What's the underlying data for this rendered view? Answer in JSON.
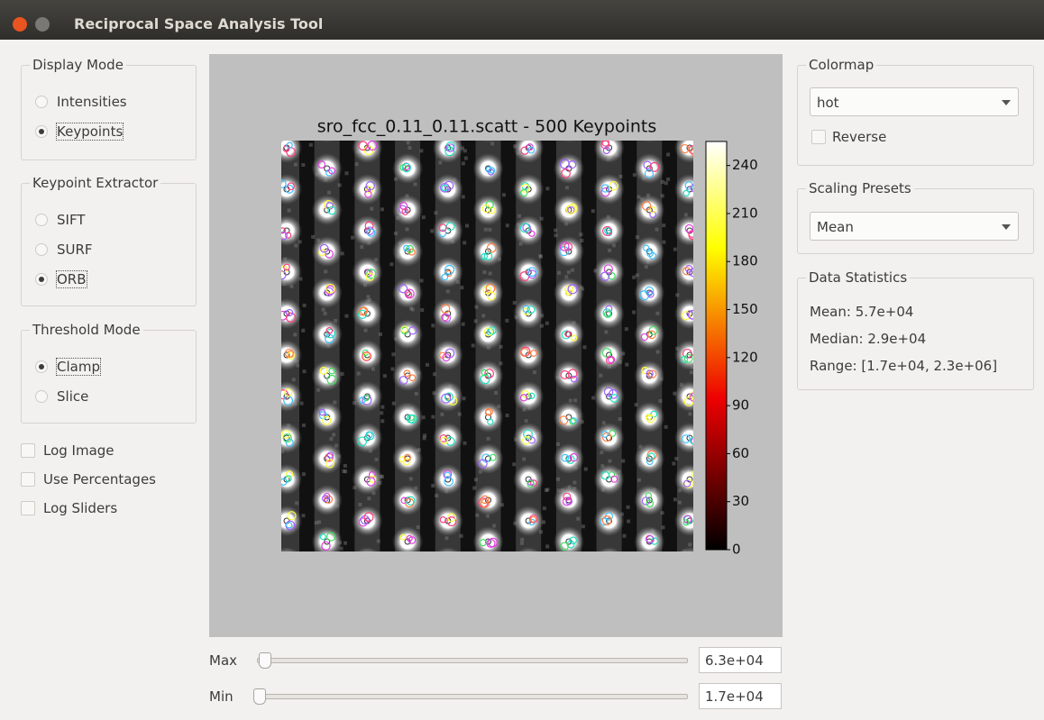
{
  "window": {
    "title": "Reciprocal Space Analysis Tool"
  },
  "left_panel": {
    "groups": [
      {
        "title": "Display Mode",
        "options": [
          "Intensities",
          "Keypoints"
        ],
        "selected": 1
      },
      {
        "title": "Keypoint Extractor",
        "options": [
          "SIFT",
          "SURF",
          "ORB"
        ],
        "selected": 2
      },
      {
        "title": "Threshold Mode",
        "options": [
          "Clamp",
          "Slice"
        ],
        "selected": 0
      }
    ],
    "checkboxes": [
      {
        "label": "Log Image",
        "checked": false
      },
      {
        "label": "Use Percentages",
        "checked": false
      },
      {
        "label": "Log Sliders",
        "checked": false
      }
    ]
  },
  "plot": {
    "title": "sro_fcc_0.11_0.11.scatt - 500 Keypoints",
    "colorbar": {
      "lim": [
        0,
        255
      ],
      "ticks": [
        0,
        30,
        60,
        90,
        120,
        150,
        180,
        210,
        240
      ]
    }
  },
  "sliders": [
    {
      "label": "Max",
      "value": "6.3e+04"
    },
    {
      "label": "Min",
      "value": "1.7e+04"
    }
  ],
  "right_panel": {
    "colormap": {
      "title": "Colormap",
      "selected": "hot",
      "reverse": {
        "label": "Reverse",
        "checked": false
      }
    },
    "scaling_presets": {
      "title": "Scaling Presets",
      "selected": "Mean"
    },
    "data_statistics": {
      "title": "Data Statistics",
      "lines": [
        "Mean: 5.7e+04",
        "Median: 2.9e+04",
        "Range: [1.7e+04, 2.3e+06]"
      ]
    }
  }
}
